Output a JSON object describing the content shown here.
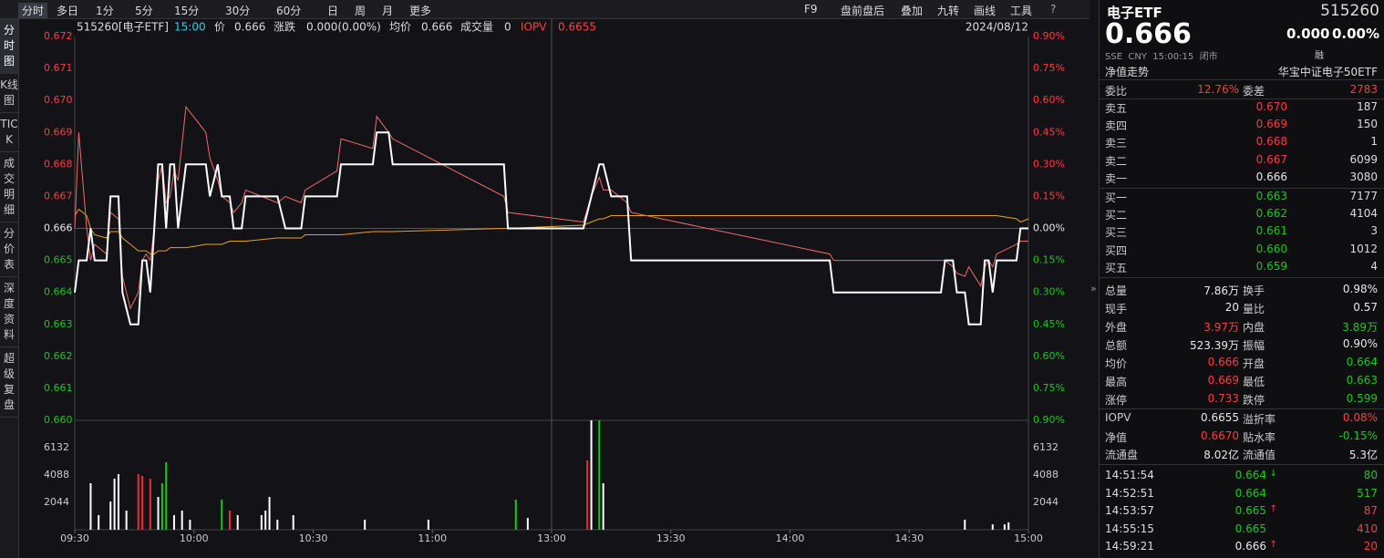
{
  "toolbar": {
    "periods": [
      "分时",
      "多日",
      "1分",
      "5分",
      "15分",
      "30分",
      "60分",
      "日",
      "周",
      "月",
      "更多"
    ],
    "tools": [
      "F9",
      "盘前盘后",
      "叠加",
      "九转",
      "画线",
      "工具"
    ]
  },
  "sidebar": [
    "分时图",
    "K线图",
    "TICK",
    "成交明细",
    "分价表",
    "深度资料",
    "超级复盘"
  ],
  "info_bar": {
    "code": "515260[电子ETF]",
    "time": "15:00",
    "price_label": "价",
    "price": "0.666",
    "change_label": "涨跌",
    "change": "0.000(0.00%)",
    "avg_label": "均价",
    "avg": "0.666",
    "volume_label": "成交量",
    "volume": "0",
    "iopv_label": "IOPV",
    "iopv": "0.6655",
    "date": "2024/08/12"
  },
  "chart_data": [
    {
      "type": "line",
      "x": [
        "09:30",
        "09:31",
        "09:33",
        "09:34",
        "09:35",
        "09:38",
        "09:39",
        "09:41",
        "09:42",
        "09:44",
        "09:46",
        "09:47",
        "09:48",
        "09:49",
        "09:50",
        "09:51",
        "09:52",
        "09:53",
        "09:54",
        "09:55",
        "09:56",
        "09:58",
        "10:03",
        "10:04",
        "10:06",
        "10:07",
        "10:09",
        "10:10",
        "10:12",
        "10:13",
        "10:21",
        "10:23",
        "10:27",
        "10:28",
        "10:36",
        "10:37",
        "10:45",
        "10:46",
        "10:49",
        "10:50",
        "11:18",
        "11:19",
        "13:08",
        "13:10",
        "13:12",
        "13:13",
        "13:15",
        "13:19",
        "13:20",
        "14:10",
        "14:11",
        "14:38",
        "14:39",
        "14:41",
        "14:42",
        "14:44",
        "14:45",
        "14:48",
        "14:49",
        "14:50",
        "14:51",
        "14:52",
        "14:57",
        "14:58",
        "15:00"
      ],
      "series": [
        {
          "name": "价",
          "color": "#ffffff",
          "values": [
            0.664,
            0.665,
            0.665,
            0.666,
            0.665,
            0.665,
            0.667,
            0.667,
            0.664,
            0.663,
            0.663,
            0.665,
            0.665,
            0.664,
            0.666,
            0.668,
            0.668,
            0.666,
            0.668,
            0.668,
            0.666,
            0.668,
            0.668,
            0.667,
            0.668,
            0.667,
            0.667,
            0.666,
            0.666,
            0.667,
            0.667,
            0.666,
            0.666,
            0.667,
            0.667,
            0.668,
            0.668,
            0.669,
            0.669,
            0.668,
            0.668,
            0.666,
            0.666,
            0.667,
            0.668,
            0.668,
            0.667,
            0.667,
            0.665,
            0.665,
            0.664,
            0.664,
            0.665,
            0.665,
            0.664,
            0.664,
            0.663,
            0.663,
            0.665,
            0.665,
            0.664,
            0.665,
            0.665,
            0.666,
            0.666
          ]
        },
        {
          "name": "IOPV",
          "color": "#f06a6a",
          "values": [
            0.666,
            0.669,
            0.666,
            0.665,
            0.6655,
            0.6652,
            0.6665,
            0.6663,
            0.6645,
            0.6635,
            0.664,
            0.665,
            0.6652,
            0.665,
            0.666,
            0.6675,
            0.668,
            0.6668,
            0.667,
            0.6678,
            0.6675,
            0.6698,
            0.669,
            0.6682,
            0.6675,
            0.667,
            0.6668,
            0.6665,
            0.6668,
            0.6672,
            0.6668,
            0.667,
            0.6668,
            0.6672,
            0.6678,
            0.6688,
            0.6685,
            0.6695,
            0.669,
            0.6688,
            0.667,
            0.6665,
            0.6662,
            0.667,
            0.6676,
            0.6672,
            0.6672,
            0.6668,
            0.6665,
            0.6652,
            0.665,
            0.665,
            0.665,
            0.6648,
            0.6646,
            0.6645,
            0.6648,
            0.6642,
            0.6648,
            0.665,
            0.6648,
            0.6652,
            0.6655,
            0.6656,
            0.6656
          ]
        },
        {
          "name": "均价",
          "color": "#e8a020",
          "values": [
            0.6664,
            0.6666,
            0.6664,
            0.666,
            0.6658,
            0.6657,
            0.6659,
            0.6659,
            0.6657,
            0.6655,
            0.6653,
            0.6653,
            0.6653,
            0.6652,
            0.6652,
            0.6653,
            0.6653,
            0.6653,
            0.6654,
            0.6654,
            0.6654,
            0.6654,
            0.6655,
            0.6655,
            0.6655,
            0.6655,
            0.6656,
            0.6656,
            0.6656,
            0.6656,
            0.6657,
            0.6657,
            0.6657,
            0.6658,
            0.6658,
            0.6658,
            0.6659,
            0.6659,
            0.6659,
            0.6659,
            0.666,
            0.666,
            0.6661,
            0.6662,
            0.6663,
            0.6663,
            0.6664,
            0.6664,
            0.6664,
            0.6664,
            0.6664,
            0.6664,
            0.6664,
            0.6664,
            0.6664,
            0.6664,
            0.6664,
            0.6664,
            0.6664,
            0.6664,
            0.6664,
            0.6664,
            0.6663,
            0.6662,
            0.6663
          ]
        }
      ],
      "ylim": [
        0.66,
        0.672
      ],
      "yticks": [
        0.672,
        0.671,
        {
          "value": 0.67,
          "label": "0.670"
        },
        0.669,
        0.668,
        0.667,
        0.666,
        0.665,
        0.664,
        0.663,
        0.662,
        0.661,
        {
          "value": 0.66,
          "label": "0.660"
        }
      ],
      "y2lim": [
        -0.9,
        0.9
      ],
      "y2ticks": [
        {
          "value": 0.9,
          "label": "0.90%"
        },
        {
          "value": 0.75,
          "label": "0.75%"
        },
        {
          "value": 0.6,
          "label": "0.60%"
        },
        {
          "value": 0.45,
          "label": "0.45%"
        },
        {
          "value": 0.3,
          "label": "0.30%"
        },
        {
          "value": 0.15,
          "label": "0.15%"
        },
        {
          "value": 0,
          "label": "0.00%"
        },
        {
          "value": -0.15,
          "label": "0.15%"
        },
        {
          "value": -0.3,
          "label": "0.30%"
        },
        {
          "value": -0.45,
          "label": "0.45%"
        },
        {
          "value": -0.6,
          "label": "0.60%"
        },
        {
          "value": -0.75,
          "label": "0.75%"
        },
        {
          "value": -0.9,
          "label": "0.90%"
        }
      ],
      "xticks": [
        "09:30",
        "10:00",
        "10:30",
        "11:00",
        "13:00",
        "13:30",
        "14:00",
        "14:30",
        "15:00"
      ]
    },
    {
      "type": "bar",
      "x": [
        "09:34",
        "09:36",
        "09:39",
        "09:40",
        "09:41",
        "09:43",
        "09:46",
        "09:47",
        "09:49",
        "09:51",
        "09:52",
        "09:53",
        "09:55",
        "09:57",
        "09:59",
        "10:07",
        "10:09",
        "10:11",
        "10:17",
        "10:18",
        "10:19",
        "10:21",
        "10:25",
        "10:43",
        "10:59",
        "11:21",
        "11:24",
        "13:09",
        "13:10",
        "13:12",
        "13:13",
        "14:44",
        "14:51",
        "14:54",
        "14:55"
      ],
      "values": [
        3475,
        1090,
        2110,
        3815,
        4155,
        1430,
        4155,
        4020,
        3815,
        2450,
        3475,
        5040,
        1090,
        1430,
        750,
        2250,
        1430,
        1090,
        1090,
        1430,
        2450,
        750,
        1090,
        750,
        750,
        2250,
        880,
        5180,
        8176,
        8176,
        3475,
        750,
        400,
        400,
        550
      ],
      "colors": [
        "#ffffff",
        "#ffffff",
        "#ffffff",
        "#ffffff",
        "#ffffff",
        "#ffffff",
        "#e83030",
        "#e83030",
        "#e83030",
        "#ffffff",
        "#1fc51f",
        "#1fc51f",
        "#ffffff",
        "#ffffff",
        "#ffffff",
        "#1fc51f",
        "#e83030",
        "#ffffff",
        "#ffffff",
        "#ffffff",
        "#ffffff",
        "#ffffff",
        "#ffffff",
        "#ffffff",
        "#ffffff",
        "#1fc51f",
        "#ffffff",
        "#e83030",
        "#ffffff",
        "#1fc51f",
        "#ffffff",
        "#ffffff",
        "#ffffff",
        "#ffffff",
        "#ffffff"
      ],
      "ylim": [
        0,
        8176
      ],
      "yticks": [
        2044,
        4088,
        6132
      ]
    }
  ],
  "quote": {
    "name": "电子ETF",
    "code": "515260",
    "price": "0.666",
    "change": "0.000",
    "change_pct": "0.00%",
    "meta": "SSE  CNY  15:00:15  闭市",
    "tag": "融",
    "nav_label": "净值走势",
    "fund": "华宝中证电子50ETF"
  },
  "ratio": [
    {
      "label": "委比",
      "value": "12.76%",
      "color": "red"
    },
    {
      "label": "委差",
      "value": "2783",
      "color": "red"
    }
  ],
  "asks": [
    {
      "label": "卖五",
      "price": "0.670",
      "color": "red",
      "volume": "187"
    },
    {
      "label": "卖四",
      "price": "0.669",
      "color": "red",
      "volume": "150"
    },
    {
      "label": "卖三",
      "price": "0.668",
      "color": "red",
      "volume": "1"
    },
    {
      "label": "卖二",
      "price": "0.667",
      "color": "red",
      "volume": "6099"
    },
    {
      "label": "卖一",
      "price": "0.666",
      "color": "white",
      "volume": "3080"
    }
  ],
  "bids": [
    {
      "label": "买一",
      "price": "0.663",
      "color": "green",
      "volume": "7177"
    },
    {
      "label": "买二",
      "price": "0.662",
      "color": "green",
      "volume": "4104"
    },
    {
      "label": "买三",
      "price": "0.661",
      "color": "green",
      "volume": "3"
    },
    {
      "label": "买四",
      "price": "0.660",
      "color": "green",
      "volume": "1012"
    },
    {
      "label": "买五",
      "price": "0.659",
      "color": "green",
      "volume": "4"
    }
  ],
  "stats": [
    [
      {
        "label": "总量",
        "value": "7.86万",
        "color": "white"
      },
      {
        "label": "换手",
        "value": "0.98%",
        "color": "white"
      }
    ],
    [
      {
        "label": "现手",
        "value": "20",
        "color": "white"
      },
      {
        "label": "量比",
        "value": "0.57",
        "color": "white"
      }
    ],
    [
      {
        "label": "外盘",
        "value": "3.97万",
        "color": "red"
      },
      {
        "label": "内盘",
        "value": "3.89万",
        "color": "green"
      }
    ],
    [
      {
        "label": "总额",
        "value": "523.39万",
        "color": "white"
      },
      {
        "label": "振幅",
        "value": "0.90%",
        "color": "white"
      }
    ],
    [
      {
        "label": "均价",
        "value": "0.666",
        "color": "red"
      },
      {
        "label": "开盘",
        "value": "0.664",
        "color": "green"
      }
    ],
    [
      {
        "label": "最高",
        "value": "0.669",
        "color": "red"
      },
      {
        "label": "最低",
        "value": "0.663",
        "color": "green"
      }
    ],
    [
      {
        "label": "涨停",
        "value": "0.733",
        "color": "red"
      },
      {
        "label": "跌停",
        "value": "0.599",
        "color": "green"
      }
    ]
  ],
  "fund_stats": [
    [
      {
        "label": "IOPV",
        "value": "0.6655",
        "color": "white"
      },
      {
        "label": "溢折率",
        "value": "0.08%",
        "color": "red"
      }
    ],
    [
      {
        "label": "净值",
        "value": "0.6670",
        "color": "red"
      },
      {
        "label": "贴水率",
        "value": "-0.15%",
        "color": "green"
      }
    ],
    [
      {
        "label": "流通盘",
        "value": "8.02亿",
        "color": "white"
      },
      {
        "label": "流通值",
        "value": "5.3亿",
        "color": "white"
      }
    ]
  ],
  "trades": [
    {
      "time": "14:51:54",
      "price": "0.664",
      "price_color": "green",
      "dir": "down",
      "volume": "80",
      "volume_color": "green"
    },
    {
      "time": "14:52:51",
      "price": "0.664",
      "price_color": "green",
      "dir": null,
      "volume": "517",
      "volume_color": "green"
    },
    {
      "time": "14:53:57",
      "price": "0.665",
      "price_color": "green",
      "dir": "up",
      "volume": "87",
      "volume_color": "red"
    },
    {
      "time": "14:55:15",
      "price": "0.665",
      "price_color": "green",
      "dir": null,
      "volume": "410",
      "volume_color": "red"
    },
    {
      "time": "14:59:21",
      "price": "0.666",
      "price_color": "white",
      "dir": "up",
      "volume": "20",
      "volume_color": "red"
    }
  ]
}
